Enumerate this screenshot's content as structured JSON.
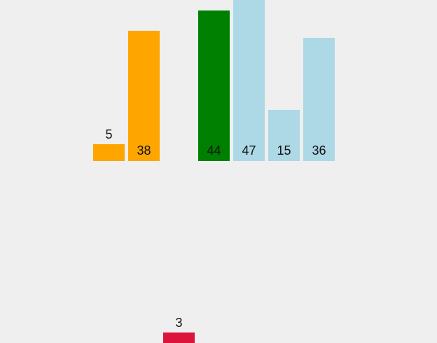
{
  "colors": {
    "background": "#efefef",
    "orange": "#ffa500",
    "green": "#008000",
    "lightblue": "#add8e6",
    "red": "#dc143c"
  },
  "bars": [
    {
      "value": 5,
      "value_label": "5",
      "color": "#ffa500"
    },
    {
      "value": 38,
      "value_label": "38",
      "color": "#ffa500"
    },
    {
      "value": 44,
      "value_label": "44",
      "color": "#008000"
    },
    {
      "value": 47,
      "value_label": "47",
      "color": "#add8e6"
    },
    {
      "value": 15,
      "value_label": "15",
      "color": "#add8e6"
    },
    {
      "value": 36,
      "value_label": "36",
      "color": "#add8e6"
    }
  ],
  "held_bar": {
    "value": 3,
    "value_label": "3",
    "color": "#dc143c"
  }
}
